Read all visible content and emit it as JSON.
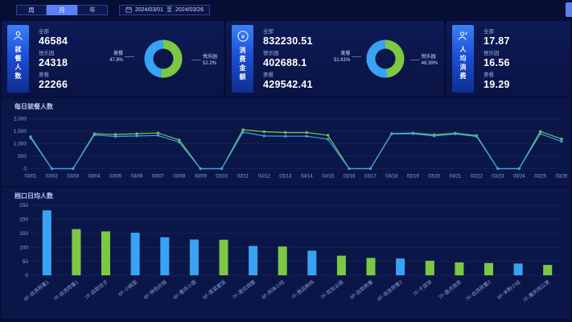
{
  "theme": {
    "background": "#070e36",
    "panel": "#0b1648",
    "accent_blue": "#38a3f2",
    "accent_green": "#7cc843",
    "tab_active": "#5b7ff5",
    "axis_text": "#8ca3d8"
  },
  "header": {
    "tabs": [
      {
        "label": "周",
        "active": false
      },
      {
        "label": "月",
        "active": true
      },
      {
        "label": "年",
        "active": false
      }
    ],
    "date_range": {
      "start": "2024/03/01",
      "separator": "至",
      "end": "2024/03/26"
    }
  },
  "cards": [
    {
      "title": "就餐人数",
      "icon": "person-icon",
      "stats": [
        {
          "label": "全部",
          "value": "46584"
        },
        {
          "label": "悦乐园",
          "value": "24318"
        },
        {
          "label": "美餐",
          "value": "22266"
        }
      ],
      "donut": {
        "slices": [
          {
            "label": "美餐",
            "pct_label": "47.8%",
            "pct": 47.8,
            "color_key": "blue",
            "side": "left"
          },
          {
            "label": "悦乐园",
            "pct_label": "52.2%",
            "pct": 52.2,
            "color_key": "green",
            "side": "right"
          }
        ]
      }
    },
    {
      "title": "消费金额",
      "icon": "yuan-circle-icon",
      "stats": [
        {
          "label": "全部",
          "value": "832230.51"
        },
        {
          "label": "悦乐园",
          "value": "402688.1"
        },
        {
          "label": "美餐",
          "value": "429542.41"
        }
      ],
      "donut": {
        "slices": [
          {
            "label": "美餐",
            "pct_label": "51.61%",
            "pct": 51.61,
            "color_key": "blue",
            "side": "left"
          },
          {
            "label": "悦乐园",
            "pct_label": "48.39%",
            "pct": 48.39,
            "color_key": "green",
            "side": "right"
          }
        ]
      }
    },
    {
      "title": "人均消费",
      "icon": "person-yuan-icon",
      "stats": [
        {
          "label": "全部",
          "value": "17.87"
        },
        {
          "label": "悦乐园",
          "value": "16.56"
        },
        {
          "label": "美餐",
          "value": "19.29"
        }
      ],
      "donut": null
    }
  ],
  "chart_data": [
    {
      "type": "pie",
      "title": "就餐人数占比",
      "labels": [
        "美餐",
        "悦乐园"
      ],
      "values": [
        47.8,
        52.2
      ],
      "unit": "%"
    },
    {
      "type": "pie",
      "title": "消费金额占比",
      "labels": [
        "美餐",
        "悦乐园"
      ],
      "values": [
        51.61,
        48.39
      ],
      "unit": "%"
    },
    {
      "type": "line",
      "title": "每日就餐人数",
      "ylim": [
        0,
        2000
      ],
      "yticks": [
        "0",
        "500",
        "1,000",
        "1,500",
        "2,000"
      ],
      "ytick_values": [
        0,
        500,
        1000,
        1500,
        2000
      ],
      "categories": [
        "03/01",
        "03/02",
        "03/03",
        "03/04",
        "03/05",
        "03/06",
        "03/07",
        "03/08",
        "03/09",
        "03/10",
        "03/11",
        "03/12",
        "03/13",
        "03/14",
        "03/15",
        "03/16",
        "03/17",
        "03/18",
        "03/19",
        "03/20",
        "03/21",
        "03/22",
        "03/23",
        "03/24",
        "03/25",
        "03/26"
      ],
      "series": [
        {
          "name": "悦乐园",
          "color_key": "green",
          "values": [
            1280,
            0,
            0,
            1400,
            1370,
            1400,
            1430,
            1150,
            0,
            0,
            1560,
            1480,
            1450,
            1450,
            1340,
            0,
            0,
            1410,
            1430,
            1360,
            1420,
            1330,
            0,
            0,
            1490,
            1190
          ]
        },
        {
          "name": "美餐",
          "color_key": "blue",
          "values": [
            1230,
            0,
            0,
            1350,
            1290,
            1310,
            1330,
            1060,
            0,
            0,
            1460,
            1310,
            1300,
            1300,
            1180,
            0,
            0,
            1390,
            1400,
            1310,
            1390,
            1290,
            0,
            0,
            1400,
            1090
          ]
        }
      ],
      "legend": false,
      "grid": true
    },
    {
      "type": "bar",
      "title": "档口日均人数",
      "ylim": [
        0,
        250
      ],
      "yticks": [
        "0",
        "50",
        "100",
        "150",
        "200",
        "250"
      ],
      "ytick_values": [
        0,
        50,
        100,
        150,
        200,
        250
      ],
      "categories": [
        "6F-自选称重1",
        "7F-自选称重1",
        "7F-自助饺子",
        "6F-小碗菜",
        "6F-特色炒饭",
        "6F-重庆小面",
        "6F-蒸菜套饭",
        "7F-港式烧腊",
        "6F-风味小吃",
        "7F-营品鲜炖",
        "7F-现包云吞",
        "6F-自助称重",
        "6F-自选称重2",
        "7F-千层饼",
        "7F-面点烧卖",
        "7F-自选称重2",
        "6F-米粉小站",
        "7F-重庆鸡公煲"
      ],
      "values": [
        232,
        165,
        157,
        152,
        136,
        128,
        127,
        105,
        103,
        88,
        70,
        62,
        60,
        52,
        46,
        44,
        42,
        37
      ],
      "colors": [
        "blue",
        "green",
        "green",
        "blue",
        "blue",
        "blue",
        "green",
        "blue",
        "green",
        "blue",
        "green",
        "green",
        "blue",
        "green",
        "green",
        "green",
        "blue",
        "green"
      ],
      "grid": true,
      "legend": false
    }
  ]
}
